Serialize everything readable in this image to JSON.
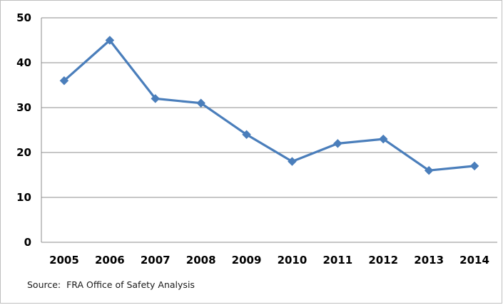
{
  "chart_data": {
    "type": "line",
    "title": "",
    "xlabel": "",
    "ylabel": "",
    "x": [
      "2005",
      "2006",
      "2007",
      "2008",
      "2009",
      "2010",
      "2011",
      "2012",
      "2013",
      "2014"
    ],
    "series": [
      {
        "values": [
          36,
          45,
          32,
          31,
          24,
          18,
          22,
          23,
          16,
          17
        ],
        "color": "#4a7ebb",
        "marker": "diamond"
      }
    ],
    "ylim": [
      0,
      50
    ],
    "yticks": [
      0,
      10,
      20,
      30,
      40,
      50
    ],
    "grid": "horizontal",
    "legend": "none"
  },
  "source_note": "Source:  FRA Office of Safety Analysis"
}
